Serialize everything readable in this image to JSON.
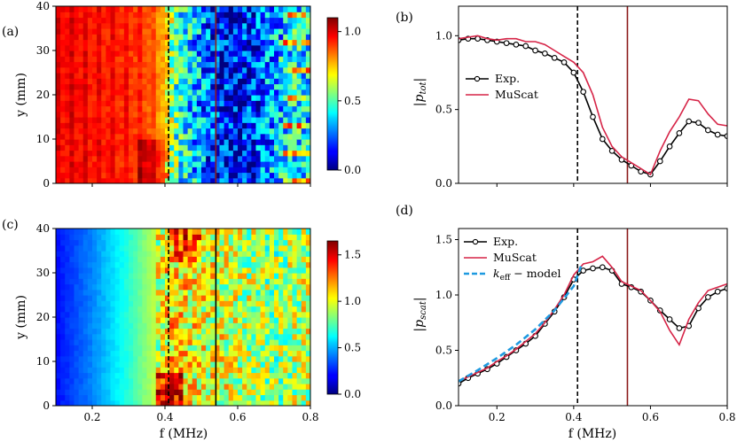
{
  "chart_data": [
    {
      "panel": "(a)",
      "type": "heatmap",
      "xlabel": "",
      "ylabel": "y (mm)",
      "xlim": [
        0.1,
        0.8
      ],
      "ylim": [
        0,
        40
      ],
      "yticks": [
        "0",
        "10",
        "20",
        "30",
        "40"
      ],
      "colorbar": {
        "range": [
          0.0,
          1.1
        ],
        "ticks": [
          "0.0",
          "0.5",
          "1.0"
        ],
        "colormap": "jet"
      },
      "vlines": [
        {
          "x": 0.41,
          "style": "dashed",
          "color": "#000000"
        },
        {
          "x": 0.54,
          "style": "solid",
          "color": "#8b1a1a"
        }
      ],
      "value_profile": {
        "f": [
          0.1,
          0.15,
          0.2,
          0.25,
          0.3,
          0.35,
          0.4,
          0.42,
          0.45,
          0.5,
          0.55,
          0.6,
          0.65,
          0.7,
          0.75,
          0.8
        ],
        "mean": [
          0.97,
          0.98,
          0.96,
          0.95,
          0.93,
          0.9,
          0.78,
          0.55,
          0.42,
          0.3,
          0.15,
          0.12,
          0.2,
          0.33,
          0.42,
          0.38
        ]
      }
    },
    {
      "panel": "(b)",
      "type": "line",
      "xlabel": "",
      "ylabel": "|p_tot|",
      "xlim": [
        0.1,
        0.8
      ],
      "ylim": [
        0.0,
        1.2
      ],
      "yticks": [
        "0.0",
        "0.5",
        "1.0"
      ],
      "vlines": [
        {
          "x": 0.41,
          "style": "dashed",
          "color": "#000000"
        },
        {
          "x": 0.54,
          "style": "solid",
          "color": "#8b1a1a"
        }
      ],
      "legend": {
        "position": "center-left",
        "entries": [
          "Exp.",
          "MuScat"
        ]
      },
      "series": [
        {
          "name": "Exp.",
          "color": "#000000",
          "marker": "circle",
          "x": [
            0.1,
            0.125,
            0.15,
            0.175,
            0.2,
            0.225,
            0.25,
            0.275,
            0.3,
            0.325,
            0.35,
            0.375,
            0.4,
            0.425,
            0.45,
            0.475,
            0.5,
            0.525,
            0.55,
            0.575,
            0.6,
            0.625,
            0.65,
            0.675,
            0.7,
            0.725,
            0.75,
            0.775,
            0.8
          ],
          "y": [
            0.97,
            0.98,
            0.98,
            0.97,
            0.96,
            0.95,
            0.94,
            0.93,
            0.9,
            0.88,
            0.85,
            0.82,
            0.75,
            0.62,
            0.45,
            0.3,
            0.22,
            0.16,
            0.12,
            0.08,
            0.06,
            0.15,
            0.25,
            0.34,
            0.42,
            0.41,
            0.36,
            0.33,
            0.32
          ]
        },
        {
          "name": "MuScat",
          "color": "#d62447",
          "marker": "none",
          "x": [
            0.1,
            0.125,
            0.15,
            0.175,
            0.2,
            0.225,
            0.25,
            0.275,
            0.3,
            0.325,
            0.35,
            0.375,
            0.4,
            0.425,
            0.45,
            0.475,
            0.5,
            0.525,
            0.55,
            0.575,
            0.6,
            0.625,
            0.65,
            0.675,
            0.7,
            0.725,
            0.75,
            0.775,
            0.8
          ],
          "y": [
            0.98,
            0.99,
            1.0,
            0.98,
            0.97,
            0.98,
            0.98,
            0.96,
            0.96,
            0.94,
            0.9,
            0.86,
            0.82,
            0.75,
            0.6,
            0.38,
            0.25,
            0.18,
            0.14,
            0.1,
            0.06,
            0.22,
            0.35,
            0.45,
            0.57,
            0.56,
            0.47,
            0.4,
            0.39
          ]
        }
      ]
    },
    {
      "panel": "(c)",
      "type": "heatmap",
      "xlabel": "f (MHz)",
      "ylabel": "y (mm)",
      "xlim": [
        0.1,
        0.8
      ],
      "ylim": [
        0,
        40
      ],
      "xticks": [
        "0.2",
        "0.4",
        "0.6",
        "0.8"
      ],
      "yticks": [
        "0",
        "10",
        "20",
        "30",
        "40"
      ],
      "colorbar": {
        "range": [
          0.0,
          1.65
        ],
        "ticks": [
          "0.0",
          "0.5",
          "1.0",
          "1.5"
        ],
        "colormap": "jet"
      },
      "vlines": [
        {
          "x": 0.41,
          "style": "dashed",
          "color": "#000000"
        },
        {
          "x": 0.54,
          "style": "solid",
          "color": "#000000"
        }
      ]
    },
    {
      "panel": "(d)",
      "type": "line",
      "xlabel": "f (MHz)",
      "ylabel": "|p_scat|",
      "xlim": [
        0.1,
        0.8
      ],
      "ylim": [
        0.0,
        1.6
      ],
      "xticks": [
        "0.2",
        "0.4",
        "0.6",
        "0.8"
      ],
      "yticks": [
        "0.0",
        "0.5",
        "1.0",
        "1.5"
      ],
      "vlines": [
        {
          "x": 0.41,
          "style": "dashed",
          "color": "#000000"
        },
        {
          "x": 0.54,
          "style": "solid",
          "color": "#8b1a1a"
        }
      ],
      "legend": {
        "position": "top-left",
        "entries": [
          "Exp.",
          "MuScat",
          "k_eff − model"
        ]
      },
      "series": [
        {
          "name": "Exp.",
          "color": "#000000",
          "marker": "circle",
          "x": [
            0.1,
            0.125,
            0.15,
            0.175,
            0.2,
            0.225,
            0.25,
            0.275,
            0.3,
            0.325,
            0.35,
            0.375,
            0.4,
            0.425,
            0.45,
            0.475,
            0.5,
            0.525,
            0.55,
            0.575,
            0.6,
            0.625,
            0.65,
            0.675,
            0.7,
            0.725,
            0.75,
            0.775,
            0.8
          ],
          "y": [
            0.2,
            0.25,
            0.29,
            0.33,
            0.38,
            0.44,
            0.5,
            0.56,
            0.63,
            0.74,
            0.85,
            0.98,
            1.14,
            1.22,
            1.24,
            1.25,
            1.22,
            1.1,
            1.07,
            1.03,
            0.95,
            0.86,
            0.78,
            0.7,
            0.72,
            0.88,
            0.98,
            1.03,
            1.06
          ]
        },
        {
          "name": "MuScat",
          "color": "#d62447",
          "marker": "none",
          "x": [
            0.1,
            0.125,
            0.15,
            0.175,
            0.2,
            0.225,
            0.25,
            0.275,
            0.3,
            0.325,
            0.35,
            0.375,
            0.4,
            0.425,
            0.45,
            0.475,
            0.5,
            0.525,
            0.55,
            0.575,
            0.6,
            0.625,
            0.65,
            0.675,
            0.7,
            0.725,
            0.75,
            0.775,
            0.8
          ],
          "y": [
            0.22,
            0.26,
            0.3,
            0.34,
            0.4,
            0.45,
            0.51,
            0.58,
            0.65,
            0.75,
            0.87,
            1.0,
            1.18,
            1.28,
            1.3,
            1.35,
            1.25,
            1.12,
            1.08,
            1.04,
            0.95,
            0.85,
            0.68,
            0.55,
            0.78,
            0.93,
            1.04,
            1.07,
            1.1
          ]
        },
        {
          "name": "k_eff − model",
          "color": "#1f9ae0",
          "marker": "none",
          "dashed": true,
          "x": [
            0.1,
            0.15,
            0.2,
            0.25,
            0.3,
            0.35,
            0.4,
            0.42
          ],
          "y": [
            0.22,
            0.32,
            0.43,
            0.55,
            0.69,
            0.86,
            1.08,
            1.27
          ]
        }
      ]
    }
  ]
}
